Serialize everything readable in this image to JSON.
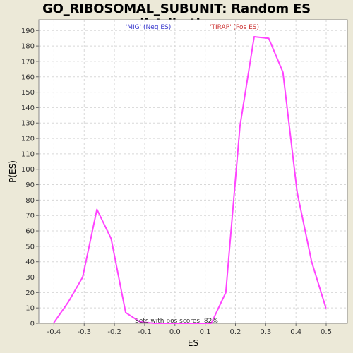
{
  "chart_data": {
    "type": "line",
    "title": "GO_RIBOSOMAL_SUBUNIT: Random ES distribution",
    "xlabel": "ES",
    "ylabel": "P(ES)",
    "xlim": [
      -0.45,
      0.57
    ],
    "ylim": [
      0,
      197
    ],
    "x_ticks": [
      -0.4,
      -0.3,
      -0.2,
      -0.1,
      0.0,
      0.1,
      0.2,
      0.3,
      0.4,
      0.5
    ],
    "x_tick_labels": [
      "-0.4",
      "-0.3",
      "-0.2",
      "-0.1",
      "0.0",
      "0.1",
      "0.2",
      "0.3",
      "0.4",
      "0.5"
    ],
    "y_ticks": [
      0,
      10,
      20,
      30,
      40,
      50,
      60,
      70,
      80,
      90,
      100,
      110,
      120,
      130,
      140,
      150,
      160,
      170,
      180,
      190
    ],
    "y_tick_labels": [
      "0",
      "10",
      "20",
      "30",
      "40",
      "50",
      "60",
      "70",
      "80",
      "90",
      "100",
      "110",
      "120",
      "130",
      "140",
      "150",
      "160",
      "170",
      "180",
      "190"
    ],
    "grid": true,
    "series": [
      {
        "color": "#ff44ff",
        "x": [
          -0.4,
          -0.352,
          -0.305,
          -0.258,
          -0.211,
          -0.163,
          -0.116,
          -0.069,
          -0.021,
          0.026,
          0.073,
          0.12,
          0.168,
          0.215,
          0.262,
          0.31,
          0.357,
          0.404,
          0.452,
          0.499
        ],
        "y": [
          0.5,
          14,
          30,
          74,
          55,
          7,
          1,
          0,
          0,
          0,
          0,
          0,
          20,
          128,
          186,
          185,
          163,
          85,
          40,
          10
        ]
      }
    ],
    "legend": [
      {
        "label": "'MIG' (Neg ES)",
        "color": "#3333cc"
      },
      {
        "label": "'TIRAP' (Pos ES)",
        "color": "#cc3333"
      }
    ],
    "annotation": "Sets with pos scores: 82%"
  }
}
